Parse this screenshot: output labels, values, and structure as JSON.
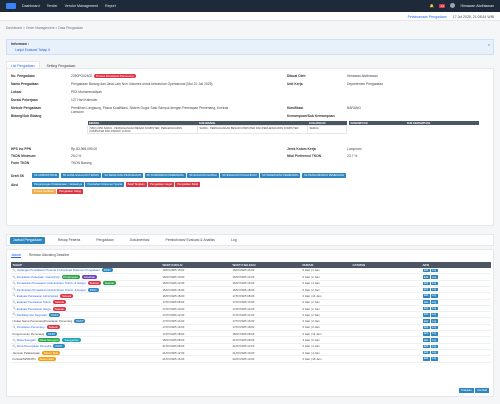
{
  "topbar": {
    "nav": [
      "Dashboard",
      "Tender",
      "Vendor Management",
      "Report"
    ],
    "notif_count": "24",
    "user_name": "Himawan Abdhiawan"
  },
  "subbar": {
    "link": "Pelaksanaan Pengadaan",
    "datetime": "17 Jul 2025, 21:08:44 WIB"
  },
  "breadcrumb": "Dashboard  >  Order Management  >  Data Pengadaan",
  "info": {
    "title": "Informasi :",
    "item": "Lanjut Evaluasi Tahap II"
  },
  "tabs_top": [
    "List Pengadaan",
    "Setting Pengadaan"
  ],
  "detail": {
    "left": [
      {
        "label": "No. Pengadaan",
        "value": "2250PG02602",
        "badge": "Proses Penetapan Pemenang"
      },
      {
        "label": "Nama Pengadaan",
        "value": "Pengadaan Barang dan Jasa Lain Non Volumes untuk kebutuhan Operasional (Mol 22 Juli 2025)"
      },
      {
        "label": "Lokasi",
        "value": "PIDI Muhammadiyah"
      },
      {
        "label": "Durasi Pekerjaan",
        "value": "127 Hari Kalender"
      },
      {
        "label": "Metode Pengadaan",
        "value": "Pemilihan Langsung, Pasca Kualifikasi, Sistem Gugur Satu Sampul dengan Penetapan Pemenang, Kontrak Lumsum"
      },
      {
        "label": "Bidang/Sub Bidang",
        "value": ""
      },
      {
        "label": "HPS Inc PPN",
        "value": "Rp.83,968,059.00"
      },
      {
        "label": "TKDN Minimum",
        "value": "25.0 %"
      },
      {
        "label": "Form TKDN",
        "value": "TKDN Barang"
      }
    ],
    "right": [
      {
        "label": "Dibuat Oleh",
        "value": "Himawan Abdhiawan"
      },
      {
        "label": "Unit Kerja",
        "value": "Departemen Pengadaan"
      },
      {
        "label": "Klasifikasi",
        "value": "BARANG"
      },
      {
        "label": "Kemampuan/Sub Kemampuan",
        "value": ""
      },
      {
        "label": "Jenis Kolom Kerja",
        "value": "Lumpsum"
      },
      {
        "label": "Nilai Preferensi TKDN",
        "value": "23.7 %"
      }
    ],
    "bidang_table": {
      "headers": [
        "BIDANG",
        "SUB BIDANG",
        "KUALIFIKASI"
      ],
      "rows": [
        [
          "(SBU) 2050 SAR01 - PERDAGANGAN BESAR KOMPUTER, PERLENGKAPAN KOMPUTER DAN PIRANTI LUNAK",
          "SAR01 - PERDAGANGAN BESAR KOMPUTER DAN PERLENGKAPAN KOMPUTER",
          "SEMUA"
        ]
      ]
    },
    "kemampuan_table": {
      "headers": [
        "KEMAMPUAN",
        "SUB KEMAMPUAN"
      ]
    }
  },
  "draft_sk": {
    "label": "Draft SK",
    "buttons": [
      {
        "label": "SK ADMINISTRASI",
        "color": "blue"
      },
      {
        "label": "SK HASIL EVALUASI TEKNIS",
        "color": "blue"
      },
      {
        "label": "SK KEMAJUAN PENGADAAN",
        "color": "blue"
      },
      {
        "label": "SK KONFIRMASI PEMENANG",
        "color": "blue"
      },
      {
        "label": "SK EVALUASI HARGA",
        "color": "blue"
      },
      {
        "label": "SK EVALUASI KUALIFIKASI",
        "color": "blue"
      },
      {
        "label": "SK PENETAPAN PEMENANG",
        "color": "blue"
      },
      {
        "label": "SK PENGUMUMAN PEMENANG",
        "color": "blue"
      }
    ]
  },
  "aksi": {
    "label": "Aksi",
    "buttons_row1": [
      {
        "label": "Perpanjangan Pelaksanaan / Jadwalnya",
        "color": "blue"
      },
      {
        "label": "Perubahan Dokumen/ Syarat",
        "color": "blue"
      },
      {
        "label": "Batal Tangkan",
        "color": "red"
      },
      {
        "label": "Pengadaan Gagal",
        "color": "red"
      },
      {
        "label": "Pengadaan Batal",
        "color": "red"
      }
    ],
    "buttons_row2": [
      {
        "label": "Proses Verifikasi",
        "color": "orange"
      },
      {
        "label": "Pengadaan Ulang",
        "color": "red"
      }
    ]
  },
  "section_tabs": [
    "Jadwal Pengadaan",
    "Rekap Peserta",
    "Pengadaan",
    "Dokumentasi",
    "Pembobotan/ Evaluasi & Analisis",
    "Log"
  ],
  "subtabs": [
    "Jadwal",
    "Revision Allocating Deadline"
  ],
  "stage_table": {
    "headers": [
      "TAHAP",
      "WAKTU MULAI",
      "WAKTU SELESAI",
      "DURASI",
      "CATATAN",
      "AKSI"
    ],
    "rows": [
      {
        "name": "Undangan Pendaftaran Peserta & Download Dokumen Pengadaan",
        "badges": [
          {
            "text": "PAST",
            "color": "blue"
          }
        ],
        "start": "10/07/2025 15:00",
        "end": "16/07/2025 16:00",
        "dur": "6 Hari | 1 Jam"
      },
      {
        "name": "Penjelasan Pekerjaan / Aanwijzing",
        "badges": [
          {
            "text": "Pertanyaan",
            "color": "green"
          },
          {
            "text": "Jawaban",
            "color": "purple"
          }
        ],
        "start": "16/07/2025 10:00",
        "end": "16/07/2025 12:00",
        "dur": "0 Hari | 2 Jam"
      },
      {
        "name": "Pemasukan Penawaran (Administrasi, Teknis, & Harga)",
        "badges": [
          {
            "text": "Selesai",
            "color": "red"
          },
          {
            "text": "Selesai",
            "color": "green"
          }
        ],
        "start": "16/07/2025 12:00",
        "end": "16/07/2025 16:00",
        "dur": "0 Hari | 4 Jam"
      },
      {
        "name": "Pembukaan Penawaran (Administrasi, Teknis, & Harga)",
        "badges": [
          {
            "text": "PAST",
            "color": "blue"
          }
        ],
        "start": "16/07/2025 16:00",
        "end": "16/07/2025 18:00",
        "dur": "0 Hari | 2 Jam"
      },
      {
        "name": "Evaluasi Penawaran Administrasi",
        "badges": [
          {
            "text": "Selesai",
            "color": "red"
          }
        ],
        "start": "16/07/2025 18:00",
        "end": "17/07/2025 08:00",
        "dur": "0 Hari | 14 Jam"
      },
      {
        "name": "Evaluasi Penawaran Teknis",
        "badges": [
          {
            "text": "Selesai",
            "color": "red"
          }
        ],
        "start": "17/07/2025 08:00",
        "end": "17/07/2025 10:00",
        "dur": "0 Hari | 2 Jam"
      },
      {
        "name": "Evaluasi Penawaran Harga",
        "badges": [
          {
            "text": "Selesai",
            "color": "red"
          }
        ],
        "start": "17/07/2025 10:00",
        "end": "17/07/2025 12:00",
        "dur": "0 Hari | 2 Jam"
      },
      {
        "name": "Klarifikasi dan Negosiasi",
        "badges": [
          {
            "text": "PAST",
            "color": "blue"
          }
        ],
        "start": "17/07/2025 12:00",
        "end": "17/07/2025 14:00",
        "dur": "0 Hari | 2 Jam"
      },
      {
        "name": "Usulan Nama Pemenang/Penetapan Pemenang",
        "plain": true,
        "badges": [
          {
            "text": "PAST",
            "color": "blue"
          }
        ],
        "start": "17/07/2025 14:00",
        "end": "17/07/2025 16:00",
        "dur": "0 Hari | 2 Jam"
      },
      {
        "name": "Penetapan Pemenang",
        "badges": [
          {
            "text": "Selesai",
            "color": "red"
          }
        ],
        "start": "17/07/2025 16:00",
        "end": "17/07/2025 18:00",
        "dur": "0 Hari | 2 Jam"
      },
      {
        "name": "Pengumuman Pemenang",
        "plain": true,
        "badges": [
          {
            "text": "PAST",
            "color": "blue"
          }
        ],
        "start": "17/07/2025 18:00",
        "end": "18/07/2025 08:00",
        "dur": "0 Hari | 14 Jam"
      },
      {
        "name": "Masa Sanggah",
        "badges": [
          {
            "text": "Masa Sanggah",
            "color": "green"
          },
          {
            "text": "Sanggahan",
            "color": "teal"
          }
        ],
        "start": "18/07/2025 08:00",
        "end": "21/07/2025 08:00",
        "dur": "3 Hari | 0 Jam"
      },
      {
        "name": "Surat Penunjukan Penyedia",
        "badges": [
          {
            "text": "PAST",
            "color": "blue"
          }
        ],
        "start": "21/07/2025 08:00",
        "end": "21/07/2025 12:00",
        "dur": "0 Hari | 4 Jam"
      },
      {
        "name": "Jaminan Pelaksanaan",
        "plain": true,
        "badges": [
          {
            "text": "Belum Aktif",
            "color": "orange"
          }
        ],
        "start": "21/07/2025 12:00",
        "end": "21/07/2025 16:00",
        "dur": "0 Hari | 4 Jam"
      },
      {
        "name": "Kontrak/SPMK/PO",
        "plain": true,
        "badges": [
          {
            "text": "Belum Aktif",
            "color": "orange"
          }
        ],
        "start": "21/07/2025 16:00",
        "end": "22/07/2025 10:00",
        "dur": "0 Hari | 18 Jam"
      }
    ],
    "action_labels": [
      "Edit",
      "Log"
    ]
  },
  "footer_buttons": [
    "Tetapkan",
    "Kembali"
  ]
}
